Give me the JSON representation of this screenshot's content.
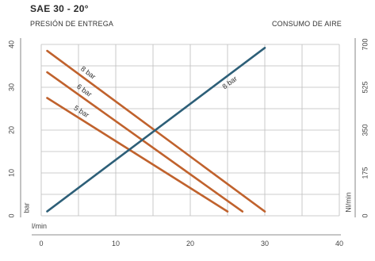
{
  "header": {
    "title": "SAE 30 - 20°",
    "left_heading": "PRESIÓN DE ENTREGA",
    "right_heading": "CONSUMO DE AIRE"
  },
  "chart_data": {
    "type": "line",
    "grid": true,
    "x_axis": {
      "label": "l/min",
      "range": [
        0,
        40
      ],
      "ticks": [
        0,
        10,
        20,
        30,
        40
      ]
    },
    "y_axis_left": {
      "label": "bar",
      "range": [
        0,
        40
      ],
      "ticks": [
        0,
        10,
        20,
        30,
        40
      ]
    },
    "y_axis_right": {
      "label": "Nl/min",
      "range": [
        0,
        700
      ],
      "ticks": [
        0,
        175,
        350,
        525,
        700
      ]
    },
    "series": [
      {
        "name": "8 bar",
        "axis": "left",
        "color": "#c0622d",
        "points": [
          [
            0.8,
            38.5
          ],
          [
            30,
            1
          ]
        ]
      },
      {
        "name": "6 bar",
        "axis": "left",
        "color": "#c0622d",
        "points": [
          [
            0.8,
            33.5
          ],
          [
            27,
            1
          ]
        ]
      },
      {
        "name": "5 bar",
        "axis": "left",
        "color": "#c0622d",
        "points": [
          [
            0.8,
            27.5
          ],
          [
            25,
            1
          ]
        ]
      },
      {
        "name": "8 bar",
        "axis": "right",
        "color": "#2d5f78",
        "points": [
          [
            0.8,
            18
          ],
          [
            30,
            686
          ]
        ]
      }
    ]
  }
}
